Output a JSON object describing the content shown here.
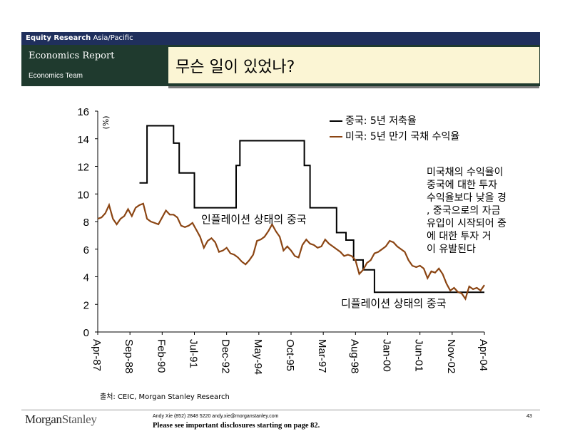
{
  "header": {
    "section": "Equity Research",
    "region": "Asia/Pacific",
    "report": "Economics Report",
    "team": "Economics Team",
    "title": "무슨 일이 있었나?"
  },
  "footer": {
    "source": "출처: CEIC, Morgan Stanley Research",
    "logo_morgan": "Morgan",
    "logo_stanley": "Stanley",
    "contact": "Andy Xie (852) 2848 5220  andy.xie@morganstanley.com",
    "disclosure": "Please see important disclosures starting on page 82.",
    "page": "43"
  },
  "colors": {
    "china_series": "#000000",
    "us_series": "#8b4513",
    "header_bar": "#1f2f5c",
    "header_band": "#1f3a2e",
    "title_box": "#fbf5d4"
  },
  "chart_data": {
    "type": "line",
    "ylabel": "(%)",
    "ylim": [
      0,
      16
    ],
    "yticks": [
      0,
      2,
      4,
      6,
      8,
      10,
      12,
      14,
      16
    ],
    "xlim": [
      "1987-04",
      "2004-04"
    ],
    "xticks": [
      "Apr-87",
      "Sep-88",
      "Feb-90",
      "Jul-91",
      "Dec-92",
      "May-94",
      "Oct-95",
      "Mar-97",
      "Aug-98",
      "Jan-00",
      "Jun-01",
      "Nov-02",
      "Apr-04"
    ],
    "legend_position": "top-right",
    "annotations": [
      "미국채의 수익율이 중국에 대한 투자 수익율보다 낮을 경우, 중국으로의 자금 유입이 시작되어 중국에 대한 투자 거품이 유발된다",
      "인플레이션 상태의 중국",
      "디플레이션 상태의 중국"
    ],
    "series": [
      {
        "name": "중국: 5년 저축율",
        "style": "step",
        "points": [
          [
            "1989-02",
            10.8
          ],
          [
            "1989-06",
            10.8
          ],
          [
            "1989-06",
            14.94
          ],
          [
            "1990-08",
            14.94
          ],
          [
            "1990-08",
            13.68
          ],
          [
            "1990-11",
            13.68
          ],
          [
            "1990-11",
            11.52
          ],
          [
            "1991-07",
            11.52
          ],
          [
            "1991-07",
            9.0
          ],
          [
            "1993-05",
            9.0
          ],
          [
            "1993-05",
            12.06
          ],
          [
            "1993-07",
            12.06
          ],
          [
            "1993-07",
            13.86
          ],
          [
            "1996-05",
            13.86
          ],
          [
            "1996-05",
            12.06
          ],
          [
            "1996-08",
            12.06
          ],
          [
            "1996-08",
            9.0
          ],
          [
            "1997-10",
            9.0
          ],
          [
            "1997-10",
            7.2
          ],
          [
            "1998-03",
            7.2
          ],
          [
            "1998-03",
            6.66
          ],
          [
            "1998-07",
            6.66
          ],
          [
            "1998-07",
            5.22
          ],
          [
            "1998-12",
            5.22
          ],
          [
            "1998-12",
            4.5
          ],
          [
            "1999-06",
            4.5
          ],
          [
            "1999-06",
            2.88
          ],
          [
            "2004-04",
            2.88
          ]
        ]
      },
      {
        "name": "미국: 5년 만기 국채 수익율",
        "style": "line",
        "points": [
          [
            "1987-04",
            8.2
          ],
          [
            "1987-06",
            8.3
          ],
          [
            "1987-08",
            8.6
          ],
          [
            "1987-10",
            9.2
          ],
          [
            "1987-12",
            8.2
          ],
          [
            "1988-02",
            7.8
          ],
          [
            "1988-04",
            8.2
          ],
          [
            "1988-06",
            8.4
          ],
          [
            "1988-08",
            8.9
          ],
          [
            "1988-10",
            8.4
          ],
          [
            "1988-12",
            9.0
          ],
          [
            "1989-02",
            9.2
          ],
          [
            "1989-04",
            9.3
          ],
          [
            "1989-06",
            8.2
          ],
          [
            "1989-08",
            8.0
          ],
          [
            "1989-10",
            7.9
          ],
          [
            "1989-12",
            7.8
          ],
          [
            "1990-02",
            8.3
          ],
          [
            "1990-04",
            8.8
          ],
          [
            "1990-06",
            8.5
          ],
          [
            "1990-08",
            8.5
          ],
          [
            "1990-10",
            8.3
          ],
          [
            "1990-12",
            7.7
          ],
          [
            "1991-02",
            7.6
          ],
          [
            "1991-04",
            7.7
          ],
          [
            "1991-06",
            7.9
          ],
          [
            "1991-08",
            7.4
          ],
          [
            "1991-10",
            6.9
          ],
          [
            "1991-12",
            6.1
          ],
          [
            "1992-02",
            6.6
          ],
          [
            "1992-04",
            6.8
          ],
          [
            "1992-06",
            6.5
          ],
          [
            "1992-08",
            5.8
          ],
          [
            "1992-10",
            5.9
          ],
          [
            "1992-12",
            6.1
          ],
          [
            "1993-02",
            5.7
          ],
          [
            "1993-04",
            5.6
          ],
          [
            "1993-06",
            5.4
          ],
          [
            "1993-08",
            5.1
          ],
          [
            "1993-10",
            4.9
          ],
          [
            "1993-12",
            5.2
          ],
          [
            "1994-02",
            5.6
          ],
          [
            "1994-04",
            6.6
          ],
          [
            "1994-06",
            6.7
          ],
          [
            "1994-08",
            6.9
          ],
          [
            "1994-10",
            7.3
          ],
          [
            "1994-12",
            7.8
          ],
          [
            "1995-02",
            7.3
          ],
          [
            "1995-04",
            6.9
          ],
          [
            "1995-06",
            5.9
          ],
          [
            "1995-08",
            6.2
          ],
          [
            "1995-10",
            5.9
          ],
          [
            "1995-12",
            5.5
          ],
          [
            "1996-02",
            5.4
          ],
          [
            "1996-04",
            6.3
          ],
          [
            "1996-06",
            6.7
          ],
          [
            "1996-08",
            6.4
          ],
          [
            "1996-10",
            6.3
          ],
          [
            "1996-12",
            6.1
          ],
          [
            "1997-02",
            6.2
          ],
          [
            "1997-04",
            6.7
          ],
          [
            "1997-06",
            6.4
          ],
          [
            "1997-08",
            6.2
          ],
          [
            "1997-10",
            6.0
          ],
          [
            "1997-12",
            5.8
          ],
          [
            "1998-02",
            5.5
          ],
          [
            "1998-04",
            5.6
          ],
          [
            "1998-06",
            5.5
          ],
          [
            "1998-08",
            5.2
          ],
          [
            "1998-10",
            4.2
          ],
          [
            "1998-12",
            4.5
          ],
          [
            "1999-02",
            5.0
          ],
          [
            "1999-04",
            5.2
          ],
          [
            "1999-06",
            5.7
          ],
          [
            "1999-08",
            5.8
          ],
          [
            "1999-10",
            6.0
          ],
          [
            "1999-12",
            6.2
          ],
          [
            "2000-02",
            6.6
          ],
          [
            "2000-04",
            6.5
          ],
          [
            "2000-06",
            6.2
          ],
          [
            "2000-08",
            6.0
          ],
          [
            "2000-10",
            5.8
          ],
          [
            "2000-12",
            5.2
          ],
          [
            "2001-02",
            4.8
          ],
          [
            "2001-04",
            4.7
          ],
          [
            "2001-06",
            4.8
          ],
          [
            "2001-08",
            4.6
          ],
          [
            "2001-10",
            3.9
          ],
          [
            "2001-12",
            4.4
          ],
          [
            "2002-02",
            4.3
          ],
          [
            "2002-04",
            4.6
          ],
          [
            "2002-06",
            4.2
          ],
          [
            "2002-08",
            3.5
          ],
          [
            "2002-10",
            3.0
          ],
          [
            "2002-12",
            3.2
          ],
          [
            "2003-02",
            2.9
          ],
          [
            "2003-04",
            2.8
          ],
          [
            "2003-06",
            2.4
          ],
          [
            "2003-08",
            3.3
          ],
          [
            "2003-10",
            3.1
          ],
          [
            "2003-12",
            3.2
          ],
          [
            "2004-02",
            3.0
          ],
          [
            "2004-04",
            3.4
          ]
        ]
      }
    ]
  }
}
